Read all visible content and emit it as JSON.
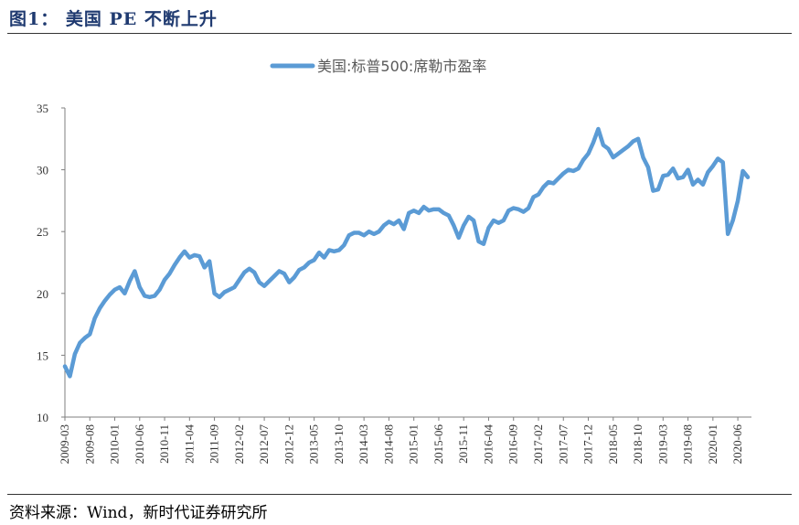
{
  "figure": {
    "title": "图1：  美国 PE 不断上升",
    "source": "资料来源：Wind，新时代证券研究所"
  },
  "chart_data": {
    "type": "line",
    "title": "",
    "xlabel": "",
    "ylabel": "",
    "ylim": [
      10,
      35
    ],
    "yticks": [
      10,
      15,
      20,
      25,
      30,
      35
    ],
    "grid": false,
    "legend_position": "top-center",
    "color": "#5b9bd5",
    "x_start": "2009-03",
    "x_tick_labels": [
      "2009-03",
      "2009-08",
      "2010-01",
      "2010-06",
      "2010-11",
      "2011-04",
      "2011-09",
      "2012-02",
      "2012-07",
      "2012-12",
      "2013-05",
      "2013-10",
      "2014-03",
      "2014-08",
      "2015-01",
      "2015-06",
      "2015-11",
      "2016-04",
      "2016-09",
      "2017-02",
      "2017-07",
      "2017-12",
      "2018-05",
      "2018-10",
      "2019-03",
      "2019-08",
      "2020-01",
      "2020-06"
    ],
    "series": [
      {
        "name": "美国:标普500:席勒市盈率",
        "values": [
          14.1,
          13.3,
          15.1,
          16.0,
          16.4,
          16.7,
          18.0,
          18.8,
          19.4,
          19.9,
          20.3,
          20.5,
          20.0,
          21.0,
          21.8,
          20.5,
          19.8,
          19.7,
          19.8,
          20.3,
          21.1,
          21.6,
          22.3,
          22.9,
          23.4,
          22.9,
          23.1,
          23.0,
          22.1,
          22.6,
          20.0,
          19.7,
          20.1,
          20.3,
          20.5,
          21.1,
          21.7,
          22.0,
          21.7,
          20.9,
          20.6,
          21.0,
          21.4,
          21.8,
          21.6,
          20.9,
          21.3,
          21.9,
          22.1,
          22.5,
          22.7,
          23.3,
          22.9,
          23.5,
          23.4,
          23.5,
          23.9,
          24.7,
          24.9,
          24.9,
          24.7,
          25.0,
          24.8,
          25.0,
          25.5,
          25.8,
          25.6,
          25.9,
          25.2,
          26.5,
          26.7,
          26.5,
          27.0,
          26.7,
          26.8,
          26.8,
          26.5,
          26.3,
          25.5,
          24.5,
          25.5,
          26.2,
          25.9,
          24.2,
          24.0,
          25.3,
          25.9,
          25.7,
          25.9,
          26.7,
          26.9,
          26.8,
          26.6,
          26.9,
          27.8,
          28.0,
          28.6,
          29.0,
          28.9,
          29.3,
          29.7,
          30.0,
          29.9,
          30.1,
          30.8,
          31.3,
          32.2,
          33.3,
          32.0,
          31.7,
          31.0,
          31.3,
          31.6,
          31.9,
          32.3,
          32.5,
          31.0,
          30.2,
          28.3,
          28.4,
          29.5,
          29.6,
          30.1,
          29.3,
          29.4,
          30.0,
          28.8,
          29.2,
          28.8,
          29.8,
          30.3,
          30.9,
          30.6,
          24.8,
          25.9,
          27.5,
          29.9,
          29.4
        ]
      }
    ]
  }
}
